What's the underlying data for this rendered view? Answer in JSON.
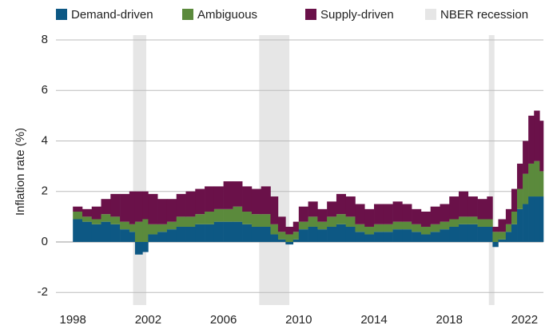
{
  "chart_data": {
    "type": "stacked_bar",
    "y_label": "Inflation rate (%)",
    "x": [
      1998.0,
      1998.5,
      1999.0,
      1999.5,
      2000.0,
      2000.5,
      2001.0,
      2001.3,
      2001.7,
      2002.0,
      2002.5,
      2003.0,
      2003.5,
      2004.0,
      2004.5,
      2005.0,
      2005.5,
      2006.0,
      2006.5,
      2007.0,
      2007.5,
      2008.0,
      2008.5,
      2008.9,
      2009.3,
      2009.7,
      2010.0,
      2010.5,
      2011.0,
      2011.5,
      2012.0,
      2012.5,
      2013.0,
      2013.5,
      2014.0,
      2014.5,
      2015.0,
      2015.5,
      2016.0,
      2016.5,
      2017.0,
      2017.5,
      2018.0,
      2018.5,
      2019.0,
      2019.5,
      2020.0,
      2020.3,
      2020.6,
      2021.0,
      2021.3,
      2021.6,
      2021.9,
      2022.2,
      2022.5,
      2022.8
    ],
    "series": [
      {
        "name": "Demand-driven",
        "color": "#0d5884",
        "values": [
          0.9,
          0.8,
          0.7,
          0.8,
          0.7,
          0.5,
          0.4,
          -0.5,
          -0.4,
          0.3,
          0.4,
          0.5,
          0.6,
          0.6,
          0.7,
          0.7,
          0.8,
          0.8,
          0.8,
          0.7,
          0.6,
          0.6,
          0.3,
          0.1,
          -0.1,
          0.1,
          0.5,
          0.6,
          0.5,
          0.6,
          0.7,
          0.6,
          0.4,
          0.3,
          0.4,
          0.4,
          0.5,
          0.5,
          0.4,
          0.3,
          0.4,
          0.5,
          0.6,
          0.7,
          0.7,
          0.6,
          0.6,
          -0.2,
          0.1,
          0.4,
          0.7,
          1.3,
          1.5,
          1.8,
          1.8,
          1.8
        ]
      },
      {
        "name": "Ambiguous",
        "color": "#5b8a3c",
        "values": [
          0.3,
          0.2,
          0.2,
          0.3,
          0.3,
          0.3,
          0.3,
          0.8,
          0.9,
          0.4,
          0.3,
          0.3,
          0.4,
          0.4,
          0.4,
          0.5,
          0.5,
          0.5,
          0.6,
          0.5,
          0.5,
          0.5,
          0.4,
          0.3,
          0.3,
          0.3,
          0.3,
          0.4,
          0.3,
          0.4,
          0.4,
          0.4,
          0.3,
          0.3,
          0.3,
          0.3,
          0.3,
          0.3,
          0.3,
          0.3,
          0.3,
          0.3,
          0.3,
          0.3,
          0.3,
          0.3,
          0.3,
          0.4,
          0.3,
          0.3,
          0.5,
          0.8,
          1.2,
          1.3,
          1.4,
          1.0
        ]
      },
      {
        "name": "Supply-driven",
        "color": "#6a1149",
        "values": [
          0.2,
          0.3,
          0.5,
          0.6,
          0.9,
          1.1,
          1.3,
          1.2,
          1.1,
          1.2,
          1.0,
          0.9,
          0.9,
          1.0,
          1.0,
          1.0,
          0.9,
          1.1,
          1.0,
          1.0,
          1.0,
          1.1,
          1.1,
          0.6,
          0.3,
          0.4,
          0.6,
          0.6,
          0.5,
          0.6,
          0.8,
          0.8,
          0.8,
          0.7,
          0.8,
          0.8,
          0.8,
          0.7,
          0.6,
          0.6,
          0.7,
          0.7,
          0.9,
          1.0,
          0.8,
          0.8,
          0.9,
          0.2,
          0.5,
          0.6,
          0.9,
          1.0,
          1.3,
          1.9,
          2.0,
          2.0
        ]
      }
    ],
    "recession_name": "NBER recession",
    "recession_color": "#e6e6e6",
    "recessions": [
      [
        2001.2,
        2001.9
      ],
      [
        2007.9,
        2009.5
      ],
      [
        2020.1,
        2020.4
      ]
    ],
    "xlim": [
      1997.1,
      2023.0
    ],
    "xticks": [
      1998,
      2002,
      2006,
      2010,
      2014,
      2018,
      2022
    ],
    "ylim": [
      -2.5,
      8
    ],
    "yticks": [
      -2,
      0,
      2,
      4,
      6,
      8
    ],
    "grid": true
  }
}
